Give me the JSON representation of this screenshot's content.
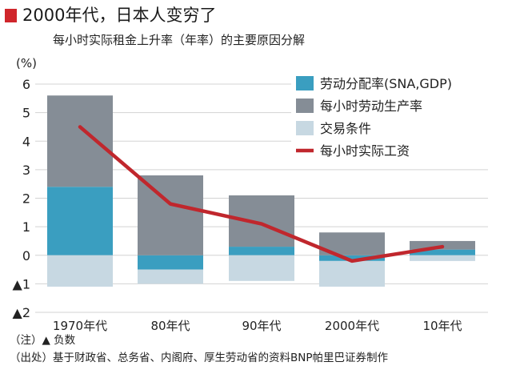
{
  "title": "2000年代，日本人变穷了",
  "subtitle": "每小时实际租金上升率（年率）的主要原因分解",
  "colors": {
    "title_marker": "#d0262b",
    "labor_share": "#3a9ec0",
    "productivity": "#858d96",
    "terms_of_trade": "#c7d8e2",
    "real_wage": "#c0272d",
    "grid": "#d3d3d3"
  },
  "chart_data": {
    "type": "bar",
    "stacked": true,
    "y_unit": "(%)",
    "ylim": [
      -2,
      6
    ],
    "y_ticks": [
      {
        "value": 6,
        "label": "6"
      },
      {
        "value": 5,
        "label": "5"
      },
      {
        "value": 4,
        "label": "4"
      },
      {
        "value": 3,
        "label": "3"
      },
      {
        "value": 2,
        "label": "2"
      },
      {
        "value": 1,
        "label": "1"
      },
      {
        "value": 0,
        "label": "0"
      },
      {
        "value": -1,
        "label": "▲1"
      },
      {
        "value": -2,
        "label": "▲2"
      }
    ],
    "grid": true,
    "legend_position": "top-right",
    "categories": [
      "1970年代",
      "80年代",
      "90年代",
      "2000年代",
      "10年代"
    ],
    "series": [
      {
        "name": "劳动分配率(SNA,GDP)",
        "kind": "bar",
        "color_key": "labor_share",
        "values": [
          2.4,
          -0.5,
          0.3,
          -0.2,
          0.2
        ]
      },
      {
        "name": "每小时劳动生产率",
        "kind": "bar",
        "color_key": "productivity",
        "values": [
          3.2,
          2.8,
          1.8,
          0.8,
          0.3
        ]
      },
      {
        "name": "交易条件",
        "kind": "bar",
        "color_key": "terms_of_trade",
        "values": [
          -1.1,
          -0.5,
          -0.9,
          -0.9,
          -0.2
        ]
      },
      {
        "name": "每小时实际工资",
        "kind": "line",
        "color_key": "real_wage",
        "values": [
          4.5,
          1.8,
          1.1,
          -0.2,
          0.3
        ]
      }
    ]
  },
  "notes": {
    "note": "（注）▲ 负数",
    "source": "（出处）基于财政省、总务省、内阁府、厚生劳动省的资料BNP帕里巴证券制作"
  }
}
